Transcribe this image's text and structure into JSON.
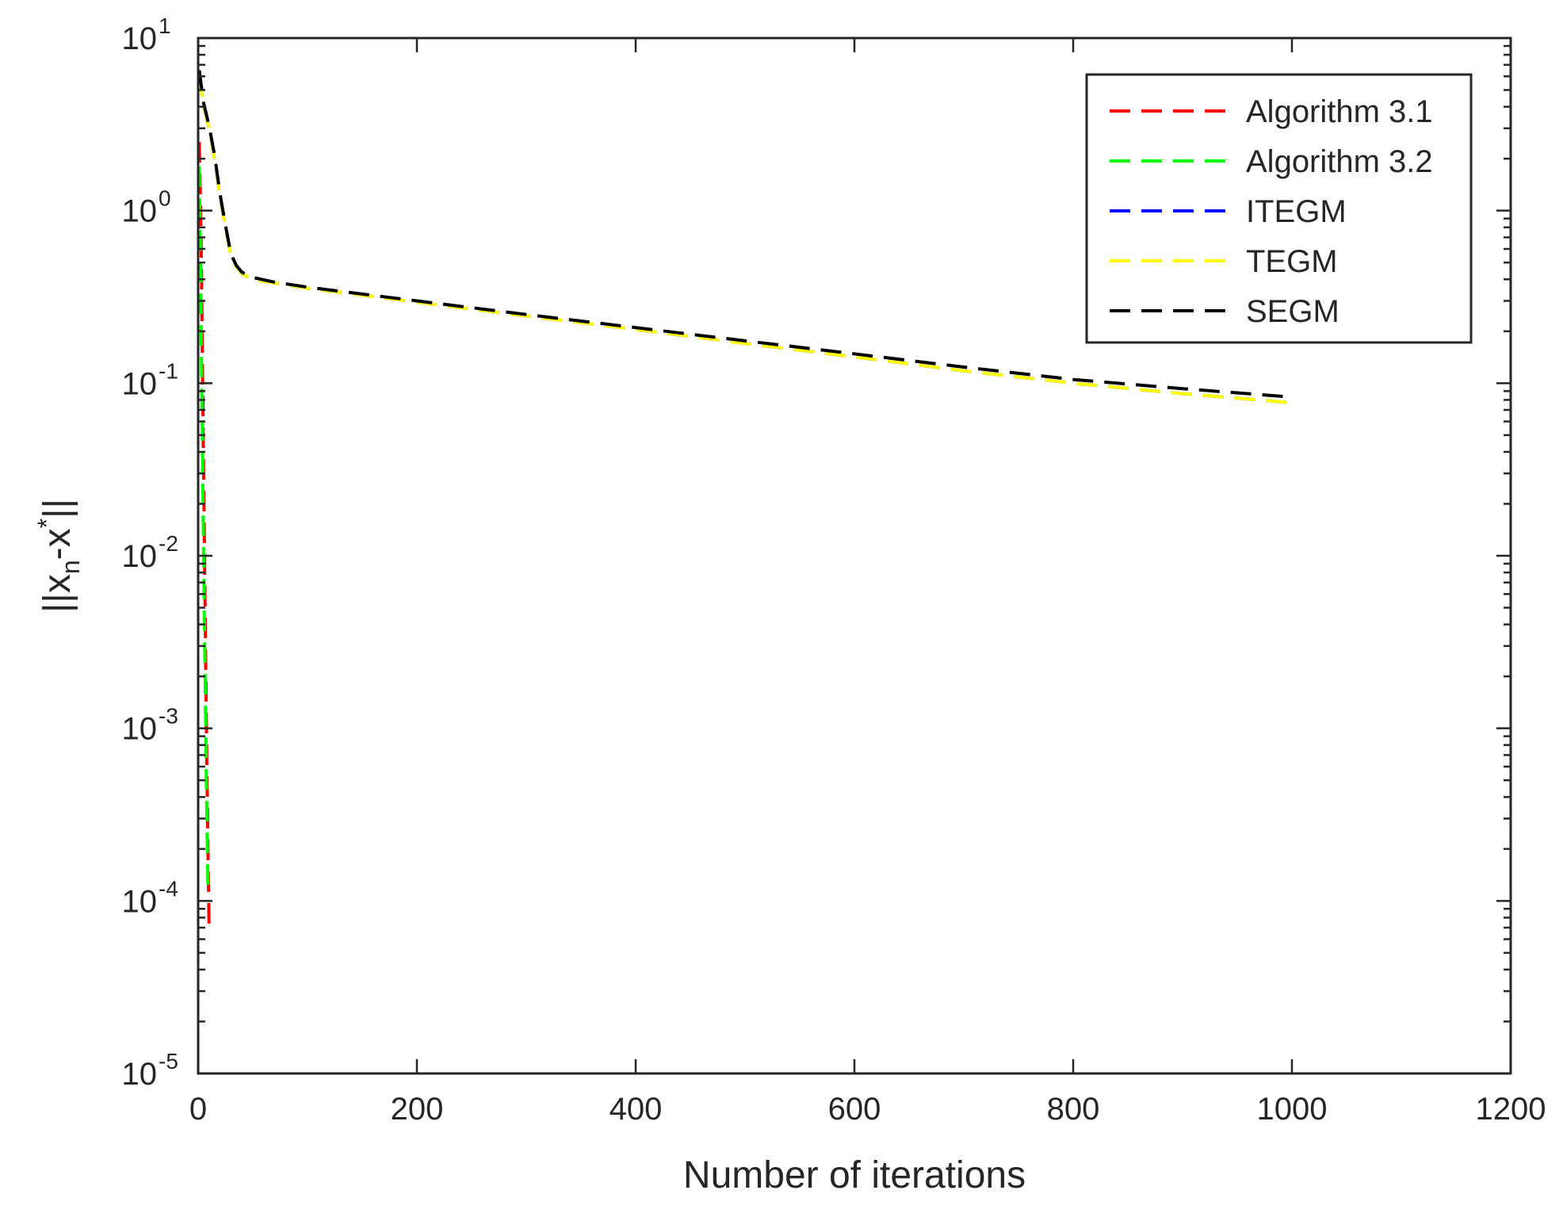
{
  "chart_data": {
    "type": "line",
    "title": "",
    "xlabel": "Number of iterations",
    "ylabel": {
      "prefix": "||x",
      "sub": "n",
      "middle": "-x",
      "sup": "*",
      "suffix": "||"
    },
    "yscale": "log",
    "xlim": [
      0,
      1200
    ],
    "ylim": [
      1e-05,
      10
    ],
    "x_ticks": [
      "0",
      "200",
      "400",
      "600",
      "800",
      "1000",
      "1200"
    ],
    "x_tick_values": [
      0,
      200,
      400,
      600,
      800,
      1000,
      1200
    ],
    "y_ticks": [
      {
        "base": "10",
        "exp": "1",
        "value": 10
      },
      {
        "base": "10",
        "exp": "0",
        "value": 1
      },
      {
        "base": "10",
        "exp": "-1",
        "value": 0.1
      },
      {
        "base": "10",
        "exp": "-2",
        "value": 0.01
      },
      {
        "base": "10",
        "exp": "-3",
        "value": 0.001
      },
      {
        "base": "10",
        "exp": "-4",
        "value": 0.0001
      },
      {
        "base": "10",
        "exp": "-5",
        "value": 1e-05
      }
    ],
    "grid": false,
    "legend_position": "top-right",
    "series": [
      {
        "name": "Algorithm 3.1",
        "color": "#ff0000",
        "points": [
          [
            1,
            2.5
          ],
          [
            2,
            1.2
          ],
          [
            3,
            0.5
          ],
          [
            4,
            0.12
          ],
          [
            5,
            0.03
          ],
          [
            6,
            0.008
          ],
          [
            7,
            0.002
          ],
          [
            8,
            0.0006
          ],
          [
            9,
            0.0002
          ],
          [
            10,
            7e-05
          ]
        ]
      },
      {
        "name": "Algorithm 3.2",
        "color": "#00ff00",
        "points": [
          [
            1,
            1.8
          ],
          [
            2,
            0.6
          ],
          [
            3,
            0.15
          ],
          [
            4,
            0.04
          ],
          [
            5,
            0.01
          ],
          [
            6,
            0.003
          ],
          [
            7,
            0.0009
          ],
          [
            8,
            0.0003
          ],
          [
            9,
            0.00012
          ]
        ]
      },
      {
        "name": "ITEGM",
        "color": "#0000ff",
        "points": [
          [
            1,
            6
          ],
          [
            5,
            4
          ],
          [
            10,
            3
          ],
          [
            15,
            2
          ],
          [
            20,
            1.2
          ],
          [
            25,
            0.8
          ],
          [
            30,
            0.55
          ],
          [
            35,
            0.47
          ],
          [
            40,
            0.43
          ],
          [
            50,
            0.4
          ],
          [
            70,
            0.38
          ],
          [
            100,
            0.355
          ],
          [
            200,
            0.295
          ],
          [
            300,
            0.245
          ],
          [
            400,
            0.205
          ],
          [
            500,
            0.17
          ],
          [
            600,
            0.142
          ],
          [
            700,
            0.118
          ],
          [
            800,
            0.1
          ],
          [
            900,
            0.087
          ],
          [
            1000,
            0.077
          ]
        ]
      },
      {
        "name": "TEGM",
        "color": "#ffff00",
        "points": [
          [
            1,
            6
          ],
          [
            5,
            4
          ],
          [
            10,
            3
          ],
          [
            15,
            2
          ],
          [
            20,
            1.2
          ],
          [
            25,
            0.8
          ],
          [
            30,
            0.55
          ],
          [
            35,
            0.47
          ],
          [
            40,
            0.43
          ],
          [
            50,
            0.4
          ],
          [
            70,
            0.38
          ],
          [
            100,
            0.355
          ],
          [
            200,
            0.295
          ],
          [
            300,
            0.245
          ],
          [
            400,
            0.205
          ],
          [
            500,
            0.17
          ],
          [
            600,
            0.142
          ],
          [
            700,
            0.118
          ],
          [
            800,
            0.1
          ],
          [
            900,
            0.087
          ],
          [
            1000,
            0.077
          ]
        ]
      },
      {
        "name": "SEGM",
        "color": "#000000",
        "points": [
          [
            1,
            6.5
          ],
          [
            5,
            4.2
          ],
          [
            10,
            3.1
          ],
          [
            15,
            2.1
          ],
          [
            20,
            1.25
          ],
          [
            25,
            0.82
          ],
          [
            30,
            0.56
          ],
          [
            35,
            0.48
          ],
          [
            40,
            0.44
          ],
          [
            50,
            0.41
          ],
          [
            70,
            0.385
          ],
          [
            100,
            0.36
          ],
          [
            200,
            0.3
          ],
          [
            300,
            0.25
          ],
          [
            400,
            0.21
          ],
          [
            500,
            0.176
          ],
          [
            600,
            0.148
          ],
          [
            700,
            0.124
          ],
          [
            800,
            0.105
          ],
          [
            900,
            0.093
          ],
          [
            1000,
            0.083
          ]
        ]
      }
    ]
  }
}
